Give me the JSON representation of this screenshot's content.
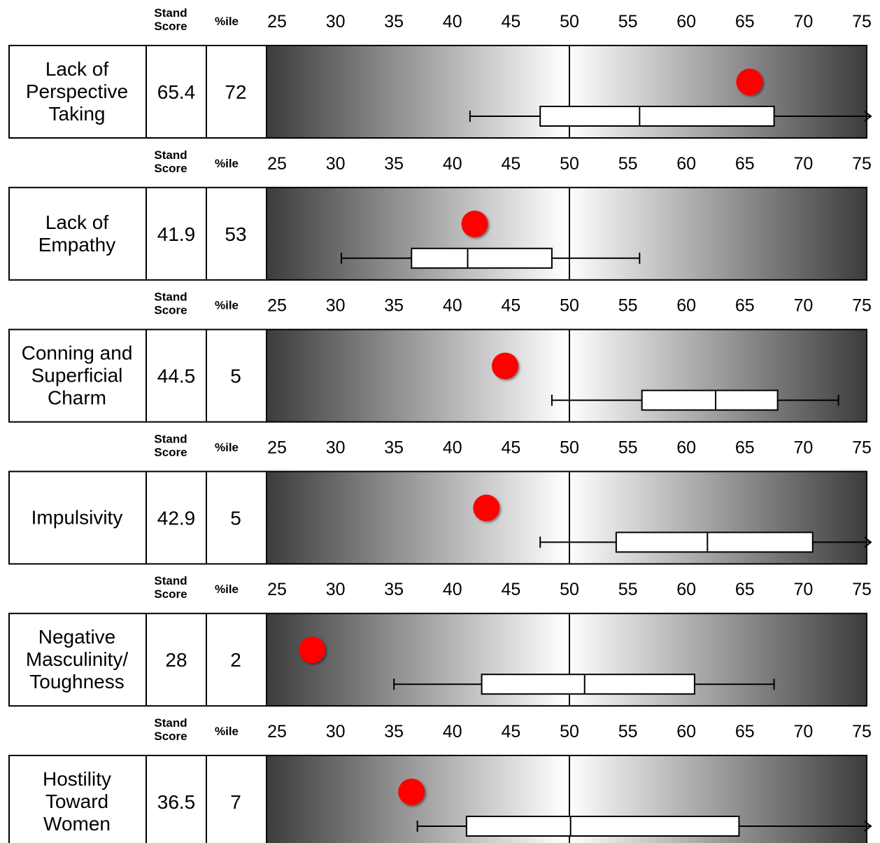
{
  "header": {
    "stand_score_line1": "Stand",
    "stand_score_line2": "Score",
    "percentile": "%ile"
  },
  "chart_data": {
    "type": "boxplot",
    "axis": {
      "min": 25,
      "max": 75,
      "ticks": [
        25,
        30,
        35,
        40,
        45,
        50,
        55,
        60,
        65,
        70,
        75
      ],
      "reference_line": 50
    },
    "rows": [
      {
        "label": [
          "Lack of",
          "Perspective",
          "Taking"
        ],
        "stand_score": "65.4",
        "percentile": "72",
        "marker": 65.4,
        "whisker_low": 41.5,
        "q1": 47.5,
        "median": 56,
        "q3": 67.5,
        "whisker_high": 75,
        "arrow": true
      },
      {
        "label": [
          "Lack of",
          "Empathy"
        ],
        "stand_score": "41.9",
        "percentile": "53",
        "marker": 41.9,
        "whisker_low": 30.5,
        "q1": 36.5,
        "median": 41.3,
        "q3": 48.5,
        "whisker_high": 56,
        "arrow": false
      },
      {
        "label": [
          "Conning and",
          "Superficial",
          "Charm"
        ],
        "stand_score": "44.5",
        "percentile": "5",
        "marker": 44.5,
        "whisker_low": 48.5,
        "q1": 56.2,
        "median": 62.5,
        "q3": 67.8,
        "whisker_high": 73,
        "arrow": false
      },
      {
        "label": [
          "Impulsivity"
        ],
        "stand_score": "42.9",
        "percentile": "5",
        "marker": 42.9,
        "whisker_low": 47.5,
        "q1": 54,
        "median": 61.8,
        "q3": 70.8,
        "whisker_high": 75,
        "arrow": true
      },
      {
        "label": [
          "Negative",
          "Masculinity/",
          "Toughness"
        ],
        "stand_score": "28",
        "percentile": "2",
        "marker": 28,
        "whisker_low": 35,
        "q1": 42.5,
        "median": 51.3,
        "q3": 60.7,
        "whisker_high": 67.5,
        "arrow": false
      },
      {
        "label": [
          "Hostility",
          "Toward",
          "Women"
        ],
        "stand_score": "36.5",
        "percentile": "7",
        "marker": 36.5,
        "whisker_low": 37,
        "q1": 41.2,
        "median": 50.1,
        "q3": 64.5,
        "whisker_high": 75,
        "arrow": true
      }
    ]
  },
  "colors": {
    "marker": "#ff0000",
    "gradient_edge": "#3c3c3c",
    "gradient_center": "#ffffff",
    "box_fill": "#ffffff",
    "line": "#000000"
  }
}
